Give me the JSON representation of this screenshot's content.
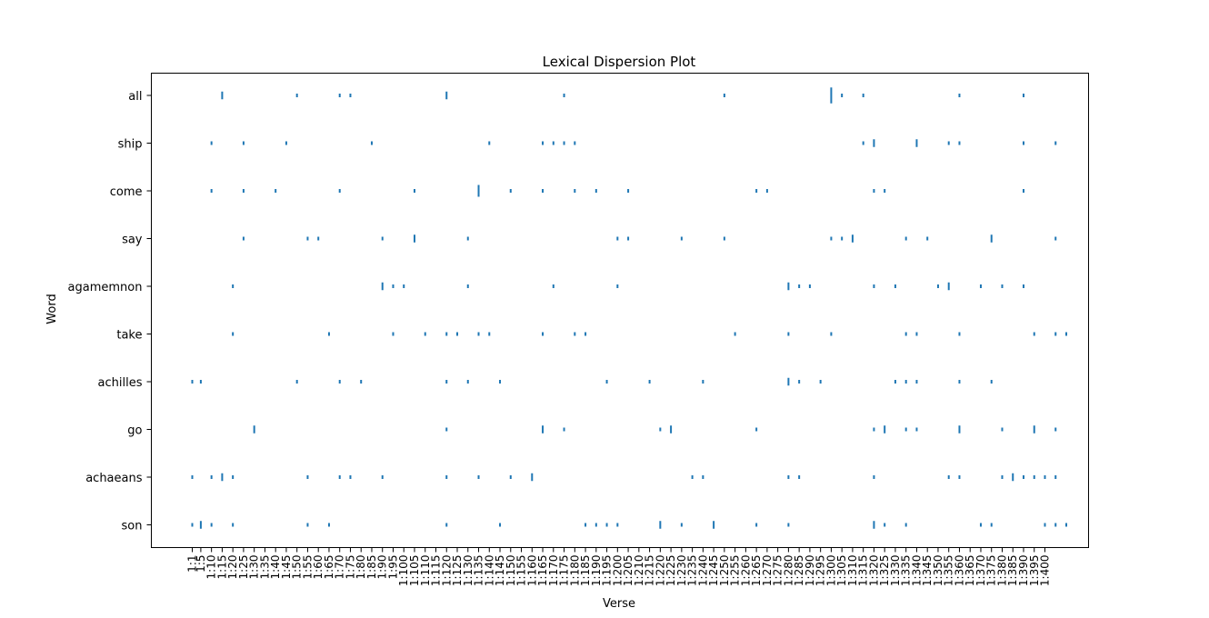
{
  "chart_data": {
    "type": "scatter",
    "title": "Lexical Dispersion Plot",
    "xlabel": "Verse",
    "ylabel": "Word",
    "x_ticks": [
      "1:1",
      "1:5",
      "1:10",
      "1:15",
      "1:20",
      "1:25",
      "1:30",
      "1:35",
      "1:40",
      "1:45",
      "1:50",
      "1:55",
      "1:60",
      "1:65",
      "1:70",
      "1:75",
      "1:80",
      "1:85",
      "1:90",
      "1:95",
      "1:100",
      "1:105",
      "1:110",
      "1:115",
      "1:120",
      "1:125",
      "1:130",
      "1:135",
      "1:140",
      "1:145",
      "1:150",
      "1:155",
      "1:160",
      "1:165",
      "1:170",
      "1:175",
      "1:180",
      "1:185",
      "1:190",
      "1:195",
      "1:200",
      "1:205",
      "1:210",
      "1:215",
      "1:220",
      "1:225",
      "1:230",
      "1:235",
      "1:240",
      "1:245",
      "1:250",
      "1:255",
      "1:260",
      "1:265",
      "1:270",
      "1:275",
      "1:280",
      "1:285",
      "1:290",
      "1:295",
      "1:300",
      "1:305",
      "1:310",
      "1:315",
      "1:320",
      "1:325",
      "1:330",
      "1:335",
      "1:340",
      "1:345",
      "1:350",
      "1:355",
      "1:360",
      "1:365",
      "1:370",
      "1:375",
      "1:380",
      "1:385",
      "1:390",
      "1:395",
      "1:400"
    ],
    "xlim": [
      -20,
      430
    ],
    "grid": false,
    "legend": "none",
    "color": "#1f77b4",
    "series": [
      {
        "name": "all",
        "x": [
          15,
          50,
          70,
          75,
          120,
          175,
          250,
          300,
          305,
          315,
          360,
          390
        ],
        "counts": [
          2,
          1,
          1,
          1,
          2,
          1,
          1,
          4,
          1,
          1,
          1,
          1
        ]
      },
      {
        "name": "ship",
        "x": [
          10,
          25,
          45,
          85,
          140,
          165,
          170,
          175,
          180,
          315,
          320,
          340,
          355,
          360,
          390,
          405
        ],
        "counts": [
          1,
          1,
          1,
          1,
          1,
          1,
          1,
          1,
          1,
          1,
          2,
          2,
          1,
          1,
          1,
          1
        ]
      },
      {
        "name": "come",
        "x": [
          10,
          25,
          40,
          70,
          105,
          135,
          150,
          165,
          180,
          190,
          205,
          265,
          270,
          320,
          325,
          390
        ],
        "counts": [
          1,
          1,
          1,
          1,
          1,
          3,
          1,
          1,
          1,
          1,
          1,
          1,
          1,
          1,
          1,
          1
        ]
      },
      {
        "name": "say",
        "x": [
          25,
          55,
          60,
          90,
          105,
          130,
          200,
          205,
          230,
          250,
          300,
          305,
          310,
          335,
          345,
          375,
          405
        ],
        "counts": [
          1,
          1,
          1,
          1,
          2,
          1,
          1,
          1,
          1,
          1,
          1,
          1,
          2,
          1,
          1,
          2,
          1
        ]
      },
      {
        "name": "agamemnon",
        "x": [
          20,
          90,
          95,
          100,
          130,
          170,
          200,
          280,
          285,
          290,
          320,
          330,
          350,
          355,
          370,
          380,
          390
        ],
        "counts": [
          1,
          2,
          1,
          1,
          1,
          1,
          1,
          2,
          1,
          1,
          1,
          1,
          1,
          2,
          1,
          1,
          1
        ]
      },
      {
        "name": "take",
        "x": [
          20,
          65,
          95,
          110,
          120,
          125,
          135,
          140,
          165,
          180,
          185,
          255,
          280,
          300,
          335,
          340,
          360,
          395,
          405,
          410
        ],
        "counts": [
          1,
          1,
          1,
          1,
          1,
          1,
          1,
          1,
          1,
          1,
          1,
          1,
          1,
          1,
          1,
          1,
          1,
          1,
          1,
          1
        ]
      },
      {
        "name": "achilles",
        "x": [
          1,
          5,
          50,
          70,
          80,
          120,
          130,
          145,
          195,
          215,
          240,
          280,
          285,
          295,
          330,
          335,
          340,
          360,
          375
        ],
        "counts": [
          1,
          1,
          1,
          1,
          1,
          1,
          1,
          1,
          1,
          1,
          1,
          2,
          1,
          1,
          1,
          1,
          1,
          1,
          1
        ]
      },
      {
        "name": "go",
        "x": [
          30,
          120,
          165,
          175,
          220,
          225,
          265,
          320,
          325,
          335,
          340,
          360,
          380,
          395,
          405
        ],
        "counts": [
          2,
          1,
          2,
          1,
          1,
          2,
          1,
          1,
          2,
          1,
          1,
          2,
          1,
          2,
          1
        ]
      },
      {
        "name": "achaeans",
        "x": [
          1,
          10,
          15,
          20,
          55,
          70,
          75,
          90,
          120,
          135,
          150,
          160,
          235,
          240,
          280,
          285,
          320,
          355,
          360,
          380,
          385,
          390,
          395,
          400,
          405
        ],
        "counts": [
          1,
          1,
          2,
          1,
          1,
          1,
          1,
          1,
          1,
          1,
          1,
          2,
          1,
          1,
          1,
          1,
          1,
          1,
          1,
          1,
          2,
          1,
          1,
          1,
          1
        ]
      },
      {
        "name": "son",
        "x": [
          1,
          5,
          10,
          20,
          55,
          65,
          120,
          145,
          185,
          190,
          195,
          200,
          220,
          230,
          245,
          265,
          280,
          320,
          325,
          335,
          370,
          375,
          400,
          405,
          410
        ],
        "counts": [
          1,
          2,
          1,
          1,
          1,
          1,
          1,
          1,
          1,
          1,
          1,
          1,
          2,
          1,
          2,
          1,
          1,
          2,
          1,
          1,
          1,
          1,
          1,
          1,
          1
        ]
      }
    ]
  }
}
